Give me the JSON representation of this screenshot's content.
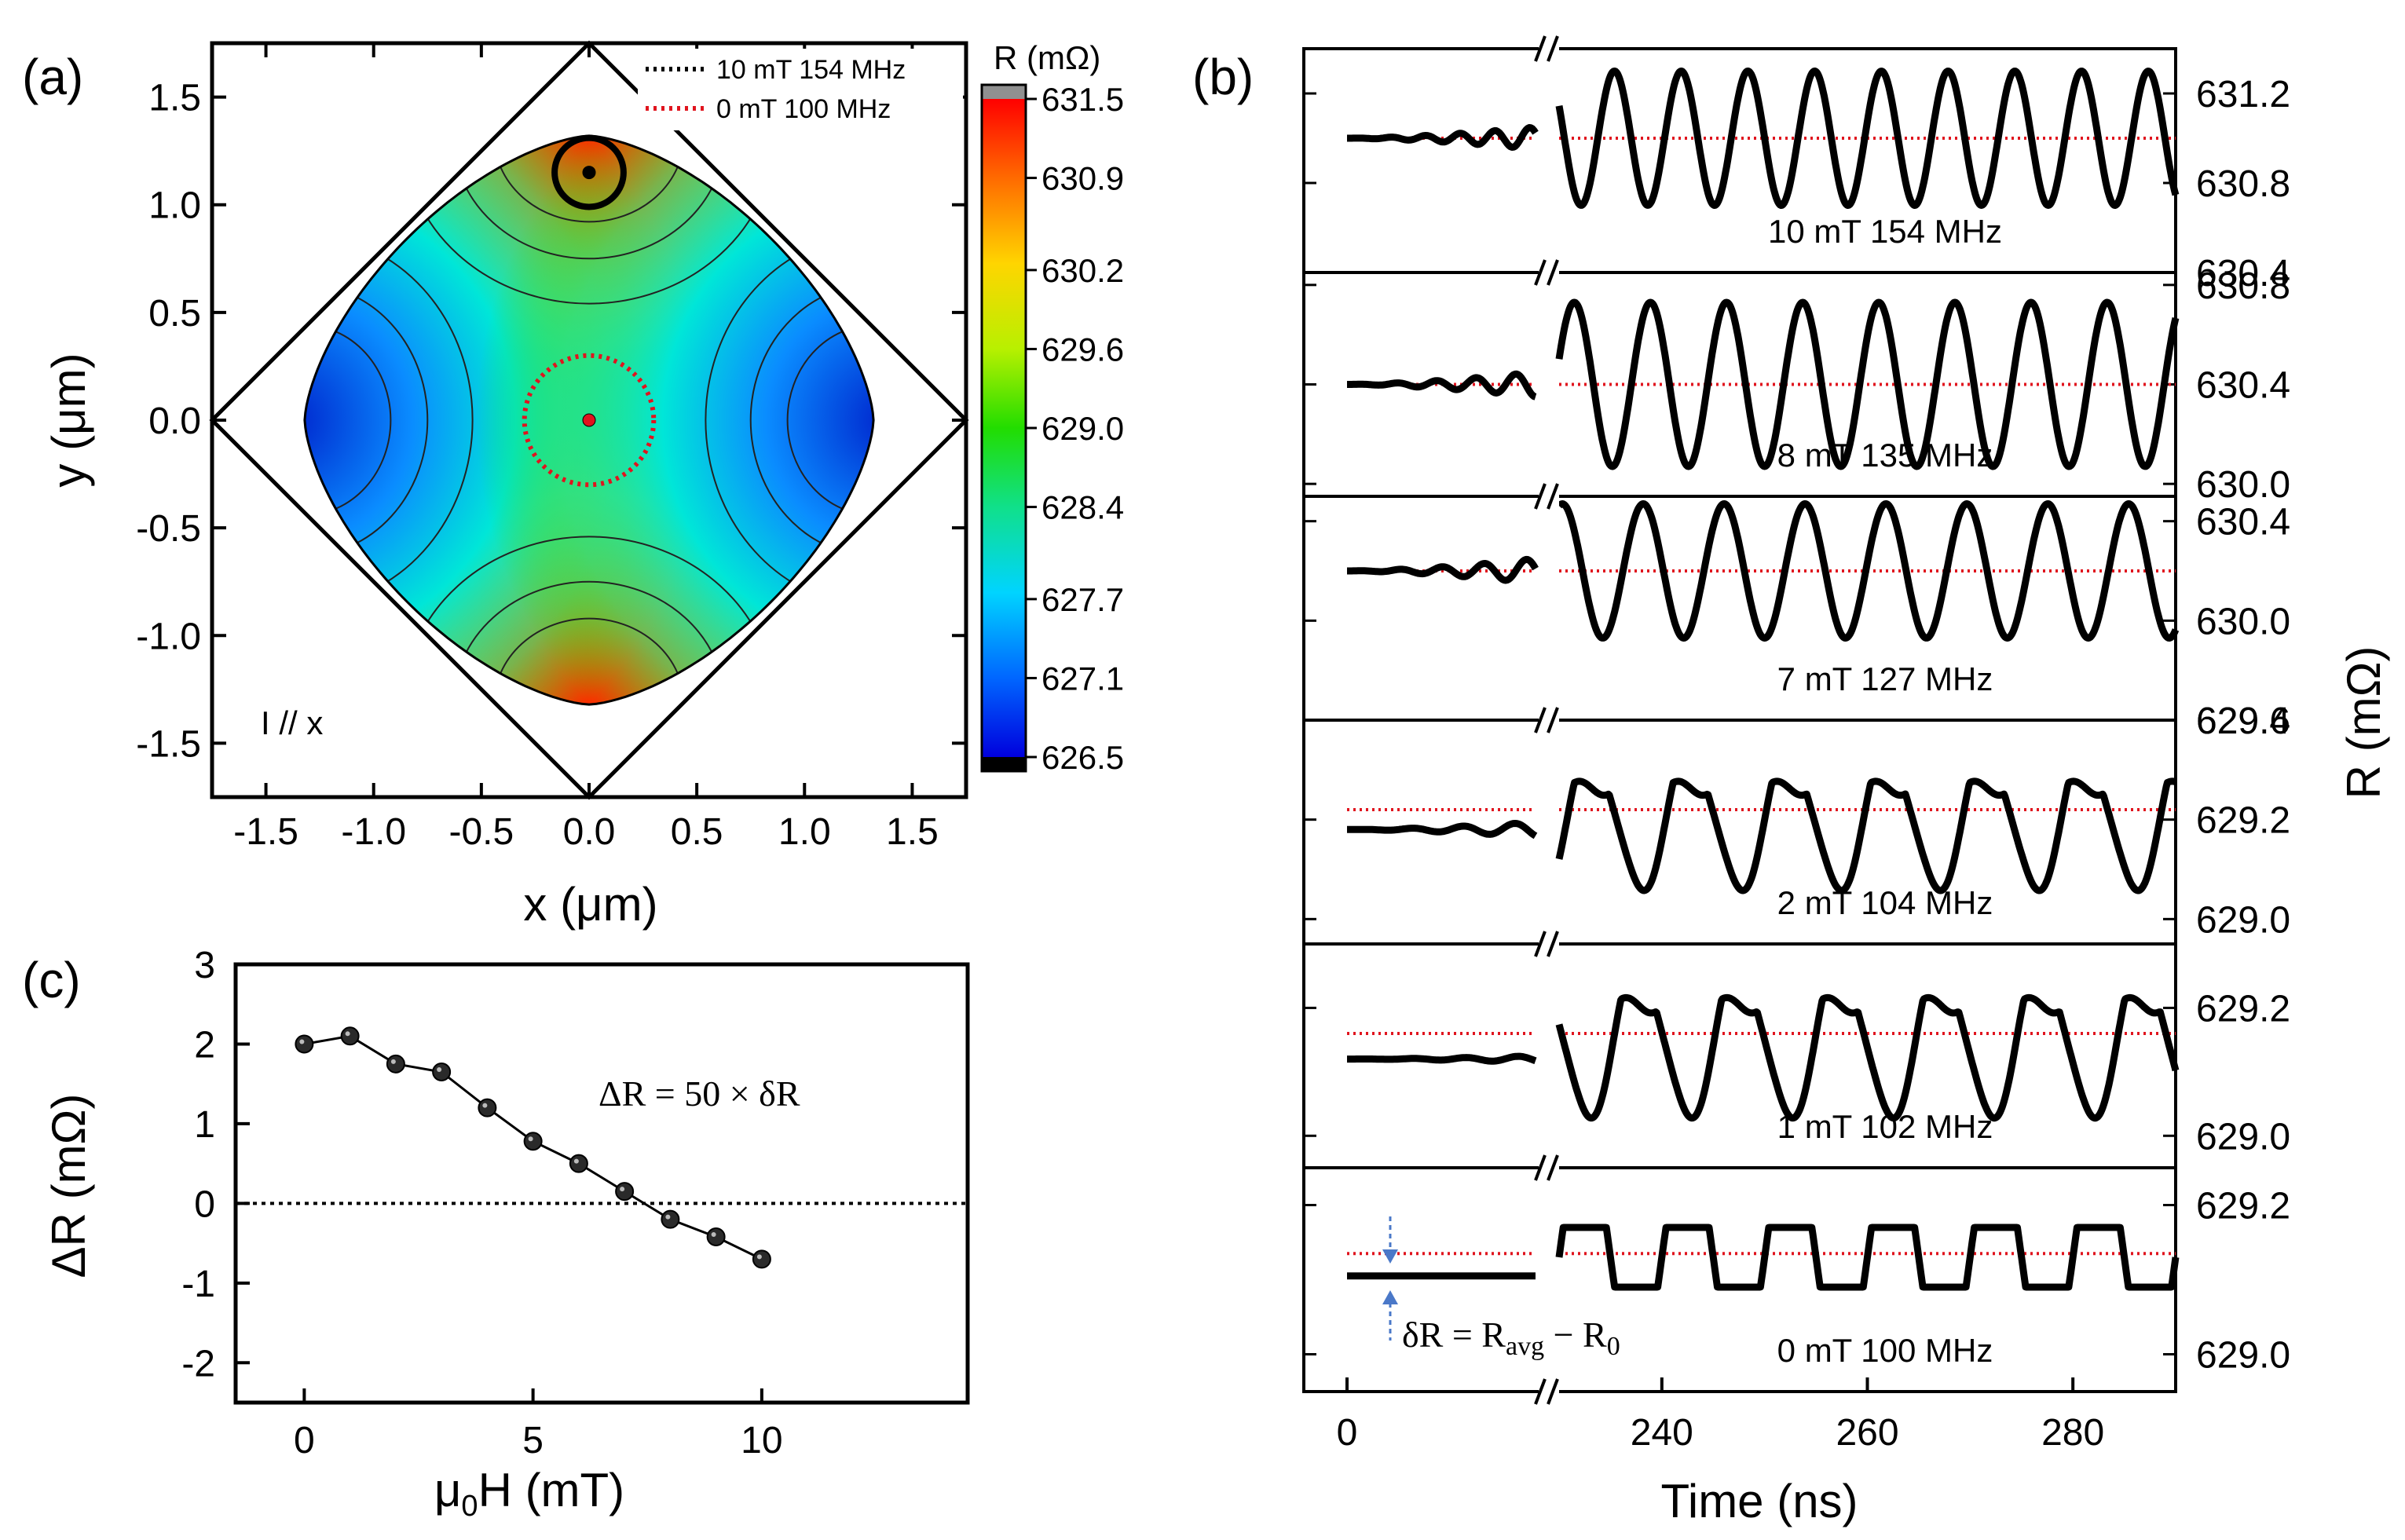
{
  "figure": {
    "panel_a_label": "(a)",
    "panel_b_label": "(b)",
    "panel_c_label": "(c)"
  },
  "colors": {
    "trace": "#000000",
    "reference": "#e0141e",
    "arrow": "#4a78c8",
    "frame": "#000000"
  },
  "chart_data": [
    {
      "id": "a",
      "type": "heatmap",
      "xlabel": "x (μm)",
      "ylabel": "y (μm)",
      "xlim": [
        -1.75,
        1.75
      ],
      "ylim": [
        -1.75,
        1.75
      ],
      "xticks": [
        -1.5,
        -1.0,
        -0.5,
        0.0,
        0.5,
        1.0,
        1.5
      ],
      "yticks": [
        -1.5,
        -1.0,
        -0.5,
        0.0,
        0.5,
        1.0,
        1.5
      ],
      "xtick_labels": [
        "-1.5",
        "-1.0",
        "-0.5",
        "0.0",
        "0.5",
        "1.0",
        "1.5"
      ],
      "ytick_labels": [
        "-1.5",
        "-1.0",
        "-0.5",
        "0.0",
        "0.5",
        "1.0",
        "1.5"
      ],
      "annotation": "I // x",
      "colorbar": {
        "title": "R (mΩ)",
        "range": [
          626.5,
          631.5
        ],
        "tick_labels": [
          "631.5",
          "630.9",
          "630.2",
          "629.6",
          "629.0",
          "628.4",
          "627.7",
          "627.1",
          "626.5"
        ],
        "tick_values": [
          631.5,
          630.9,
          630.2,
          629.6,
          629.0,
          628.4,
          627.7,
          627.1,
          626.5
        ]
      },
      "legend": [
        {
          "label": "10 mT 154 MHz",
          "color": "#000000",
          "style": "dotted"
        },
        {
          "label": "0 mT 100 MHz",
          "color": "#e0141e",
          "style": "dotted"
        }
      ],
      "orbits": [
        {
          "name": "10 mT 154 MHz",
          "center": [
            0.0,
            1.15
          ],
          "radius": 0.16,
          "color": "#000000"
        },
        {
          "name": "0 mT 100 MHz",
          "center": [
            0.0,
            0.0
          ],
          "radius": 0.3,
          "color": "#e0141e"
        }
      ]
    },
    {
      "id": "b",
      "type": "line",
      "xlabel": "Time (ns)",
      "ylabel": "R (mΩ)",
      "xtick_labels": [
        "0",
        "240",
        "260",
        "280"
      ],
      "segments": {
        "early_ns": [
          0,
          22
        ],
        "late_ns": [
          230,
          290
        ]
      },
      "series": [
        {
          "label": "10 mT 154 MHz",
          "field_mT": 10,
          "freq_MHz": 154,
          "ylim": [
            630.4,
            631.4
          ],
          "yticks": [
            "631.2",
            "630.8",
            "630.4"
          ],
          "ref": 631.0,
          "mean": 631.0,
          "amp": 0.3,
          "early_amp": 0.05,
          "early_offset": 0.0,
          "shape": "sine"
        },
        {
          "label": "8 mT 135 MHz",
          "field_mT": 8,
          "freq_MHz": 135,
          "ylim": [
            629.95,
            630.85
          ],
          "yticks": [
            "630.8",
            "630.4",
            "630.0"
          ],
          "ref": 630.4,
          "mean": 630.4,
          "amp": 0.33,
          "early_amp": 0.05,
          "early_offset": 0.0,
          "shape": "sine"
        },
        {
          "label": "7 mT 127 MHz",
          "field_mT": 7,
          "freq_MHz": 127,
          "ylim": [
            629.6,
            630.5
          ],
          "yticks": [
            "630.4",
            "630.0",
            "629.6"
          ],
          "ref": 630.2,
          "mean": 630.2,
          "amp": 0.27,
          "early_amp": 0.05,
          "early_offset": 0.0,
          "shape": "sine"
        },
        {
          "label": "2 mT 104 MHz",
          "field_mT": 2,
          "freq_MHz": 104,
          "ylim": [
            628.95,
            629.4
          ],
          "yticks": [
            "629.4",
            "629.2",
            "629.0"
          ],
          "ref": 629.22,
          "mean": 629.2,
          "amp": 0.14,
          "early_amp": 0.015,
          "early_offset": -0.02,
          "shape": "clipped"
        },
        {
          "label": "1 mT 102 MHz",
          "field_mT": 1,
          "freq_MHz": 102,
          "ylim": [
            628.95,
            629.3
          ],
          "yticks": [
            "629.2",
            "629.0"
          ],
          "ref": 629.16,
          "mean": 629.15,
          "amp": 0.12,
          "early_amp": 0.005,
          "early_offset": -0.03,
          "shape": "clipped"
        },
        {
          "label": "0 mT 100 MHz",
          "field_mT": 0,
          "freq_MHz": 100,
          "ylim": [
            628.95,
            629.25
          ],
          "yticks": [
            "629.2",
            "629.0"
          ],
          "ref": 629.135,
          "mean": 629.13,
          "amp": 0.04,
          "early_amp": 0.0,
          "early_offset": -0.025,
          "shape": "square"
        }
      ],
      "delta_annotation": "δR = Rₐᵥᵧ − R₀",
      "delta_main": "δR = R",
      "delta_avg": "avg",
      "delta_mid": " − R",
      "delta_zero": "0"
    },
    {
      "id": "c",
      "type": "scatter",
      "xlabel_main": "μ",
      "xlabel_sub": "0",
      "xlabel_rest": "H (mT)",
      "ylabel": "ΔR (mΩ)",
      "xlim": [
        -1.5,
        14.5
      ],
      "ylim": [
        -2.5,
        3.0
      ],
      "xticks": [
        0,
        5,
        10
      ],
      "yticks": [
        3,
        2,
        1,
        0,
        -1,
        -2
      ],
      "xtick_labels": [
        "0",
        "5",
        "10"
      ],
      "ytick_labels": [
        "3",
        "2",
        "1",
        "0",
        "-1",
        "-2"
      ],
      "x": [
        0,
        1,
        2,
        3,
        4,
        5,
        6,
        7,
        8,
        9,
        10
      ],
      "y": [
        2.0,
        2.1,
        1.75,
        1.65,
        1.2,
        0.78,
        0.5,
        0.15,
        -0.2,
        -0.42,
        -0.7
      ],
      "reference_line": 0,
      "annotation": "ΔR = 50 × δR"
    }
  ]
}
